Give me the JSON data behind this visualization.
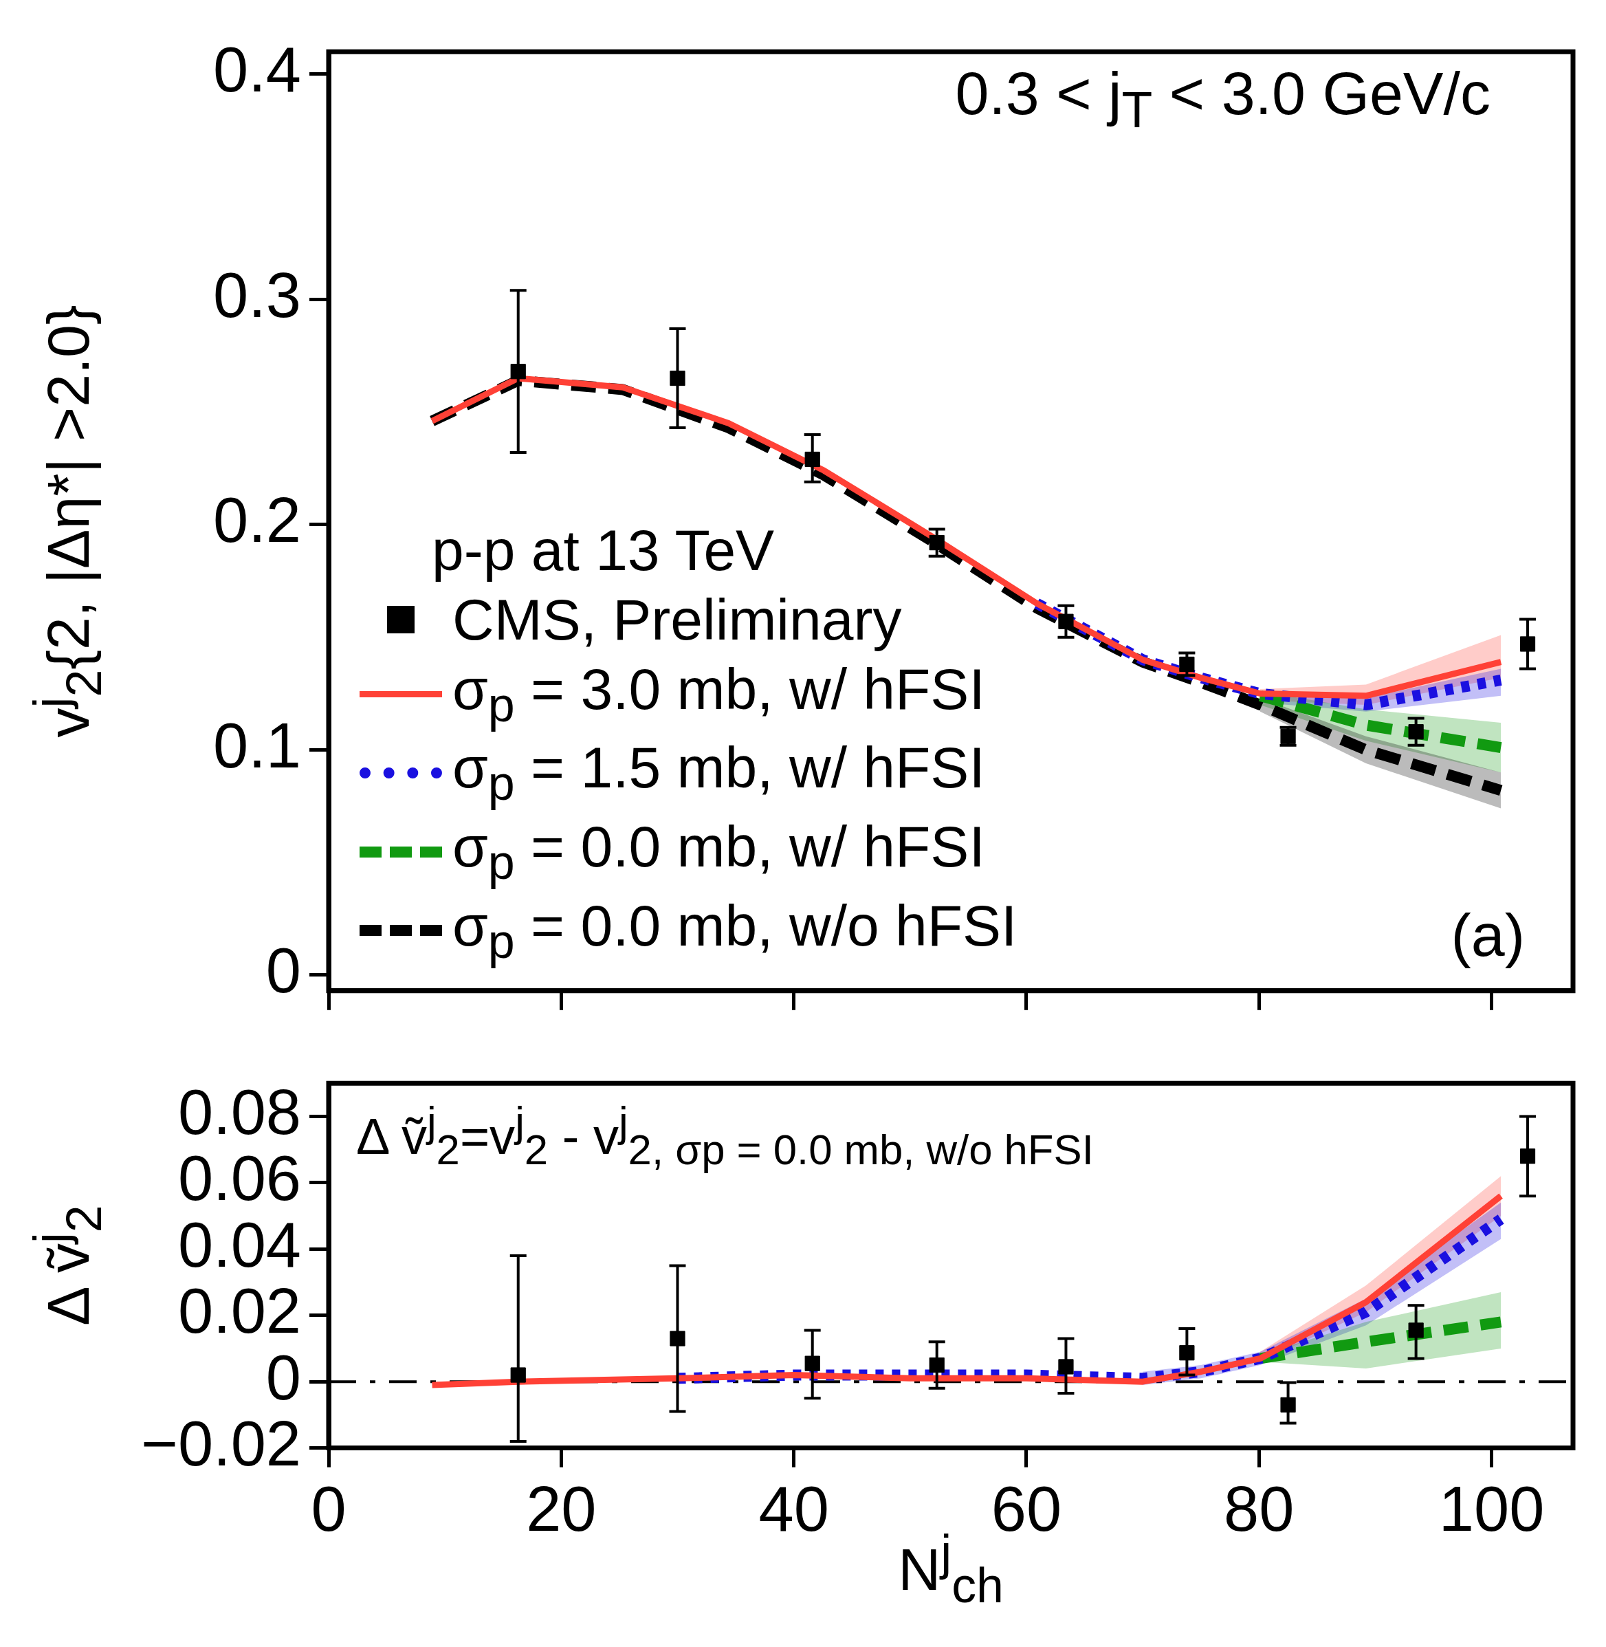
{
  "chart_data": [
    {
      "type": "line",
      "ylabel": "v$^{j}$$_{2}${2, |Δη*| >2.0}",
      "legend_title": "p-p at 13 TeV",
      "legend": "bottom left",
      "tick_labels": "y",
      "grid": false,
      "annotations": [
        "0.3 < j$_{T}$ < 3.0 GeV/c",
        "(a)"
      ],
      "xlim": [
        0,
        107
      ],
      "xticks": [
        0,
        20,
        40,
        60,
        80,
        100
      ],
      "ylim": [
        -0.007,
        0.41
      ],
      "yticks": [
        0,
        0.1,
        0.2,
        0.3,
        0.4
      ],
      "series": [
        {
          "name": "CMS, Preliminary",
          "type": "scatter",
          "marker": "square",
          "color": "#000000",
          "x": [
            16.3,
            30,
            41.6,
            52.3,
            63.4,
            73.8,
            82.5,
            93.5,
            103.1
          ],
          "values": [
            0.268,
            0.265,
            0.229,
            0.192,
            0.157,
            0.138,
            0.106,
            0.108,
            0.147
          ],
          "errors": [
            [
              0.232,
              0.304
            ],
            [
              0.243,
              0.287
            ],
            [
              0.219,
              0.24
            ],
            [
              0.186,
              0.198
            ],
            [
              0.15,
              0.164
            ],
            [
              0.133,
              0.143
            ],
            [
              0.102,
              0.11
            ],
            [
              0.102,
              0.114
            ],
            [
              0.136,
              0.158
            ]
          ]
        },
        {
          "name": "σ$_{p}$ = 3.0 mb, w/ hFSI",
          "color": "#ff4136",
          "line_style": "solid",
          "x": [
            8.9,
            16.3,
            25.3,
            34.4,
            42.6,
            51.8,
            60.9,
            70,
            75,
            80.1,
            89.2,
            100.8
          ],
          "values": [
            0.246,
            0.265,
            0.261,
            0.245,
            0.224,
            0.195,
            0.165,
            0.14,
            0.132,
            0.125,
            0.124,
            0.139
          ],
          "lower": [
            null,
            null,
            null,
            null,
            null,
            null,
            null,
            null,
            null,
            0.122,
            0.12,
            0.132
          ],
          "upper": [
            null,
            null,
            null,
            null,
            null,
            null,
            null,
            null,
            null,
            0.127,
            0.129,
            0.151
          ]
        },
        {
          "name": "σ$_{p}$ = 1.5 mb, w/ hFSI",
          "color": "#1a10e0",
          "line_style": "dotted",
          "x": [
            60.9,
            70,
            75,
            80.1,
            89.2,
            100.8
          ],
          "values": [
            0.165,
            0.14,
            0.132,
            0.125,
            0.12,
            0.131
          ],
          "lower": [
            null,
            null,
            null,
            0.121,
            0.117,
            0.124
          ],
          "upper": [
            null,
            null,
            null,
            0.126,
            0.123,
            0.136
          ]
        },
        {
          "name": "σ$_{p}$ = 0.0 mb, w/ hFSI",
          "color": "#119a11",
          "line_style": "dashed",
          "x": [
            80.1,
            89.2,
            100.8
          ],
          "values": [
            0.124,
            0.111,
            0.101
          ],
          "lower": [
            0.12,
            0.104,
            0.09
          ],
          "upper": [
            0.126,
            0.118,
            0.112
          ]
        },
        {
          "name": "σ$_{p}$ = 0.0 mb, w/o hFSI",
          "color": "#000000",
          "line_style": "dashed",
          "x": [
            8.9,
            16.3,
            25.3,
            34.4,
            42.6,
            51.8,
            60.9,
            70,
            75,
            80.1,
            89.2,
            100.8
          ],
          "values": [
            0.246,
            0.264,
            0.26,
            0.243,
            0.222,
            0.193,
            0.163,
            0.139,
            0.13,
            0.12,
            0.1,
            0.082
          ],
          "lower": [
            null,
            null,
            null,
            null,
            null,
            null,
            null,
            null,
            null,
            0.117,
            0.094,
            0.074
          ],
          "upper": [
            null,
            null,
            null,
            null,
            null,
            null,
            null,
            null,
            null,
            0.123,
            0.106,
            0.09
          ]
        }
      ]
    },
    {
      "type": "line",
      "xlabel": "N$^{j}$$_{ch}$",
      "ylabel": "Δ ṽ$^{j}$$_{2}$",
      "grid": false,
      "annotations": [
        "Δ ṽ$^{j}$$_{2}$=v$^{j}$$_{2}$ - v$^{j}$$_{2, σp = 0.0 mb, w/o hFSI}$"
      ],
      "xlim": [
        0,
        107
      ],
      "xticks": [
        0,
        20,
        40,
        60,
        80,
        100
      ],
      "ylim": [
        -0.02,
        0.09
      ],
      "yticks": [
        {
          "value": -0.02,
          "label": "−0.02"
        },
        0,
        0.02,
        0.04,
        0.06,
        0.08
      ],
      "ref_lines": [
        {
          "axis": "y",
          "value": 0,
          "color": "#000000",
          "line_style": "dashed"
        }
      ],
      "series": [
        {
          "type": "scatter",
          "marker": "square",
          "color": "#000000",
          "x": [
            16.3,
            30,
            41.6,
            52.3,
            63.4,
            73.8,
            82.5,
            93.5,
            103.1
          ],
          "values": [
            0.002,
            0.013,
            0.0055,
            0.005,
            0.0045,
            0.0087,
            -0.007,
            0.0155,
            0.068
          ],
          "errors": [
            [
              -0.018,
              0.038
            ],
            [
              -0.009,
              0.035
            ],
            [
              -0.005,
              0.0155
            ],
            [
              -0.002,
              0.012
            ],
            [
              -0.0035,
              0.013
            ],
            [
              0.002,
              0.016
            ],
            [
              -0.0125,
              -0.0003
            ],
            [
              0.007,
              0.023
            ],
            [
              0.056,
              0.08
            ]
          ]
        },
        {
          "color": "#ff4136",
          "line_style": "solid",
          "x": [
            8.9,
            16.3,
            30,
            40,
            50,
            60,
            70,
            75,
            80.1,
            89.2,
            100.8
          ],
          "values": [
            -0.001,
            0,
            0.001,
            0.002,
            0.001,
            0.001,
            0,
            0.003,
            0.007,
            0.024,
            0.056
          ],
          "lower": [
            null,
            null,
            null,
            null,
            null,
            null,
            null,
            null,
            0.006,
            0.021,
            0.05
          ],
          "upper": [
            null,
            null,
            null,
            null,
            null,
            null,
            null,
            null,
            0.009,
            0.029,
            0.062
          ]
        },
        {
          "color": "#1a10e0",
          "line_style": "dotted",
          "x": [
            30,
            40,
            50,
            60,
            70,
            75,
            80.1,
            89.2,
            100.8
          ],
          "values": [
            0.001,
            0.002,
            0.002,
            0.002,
            0.001,
            0.003,
            0.007,
            0.021,
            0.049
          ],
          "lower": [
            null,
            null,
            null,
            null,
            -0.001,
            0.001,
            0.005,
            0.017,
            0.043
          ],
          "upper": [
            null,
            null,
            null,
            null,
            0.003,
            0.005,
            0.009,
            0.025,
            0.054
          ]
        },
        {
          "color": "#119a11",
          "line_style": "dashed",
          "x": [
            80.1,
            89.2,
            100.8
          ],
          "values": [
            0.007,
            0.012,
            0.018
          ],
          "lower": [
            0.006,
            0.004,
            0.01
          ],
          "upper": [
            0.008,
            0.018,
            0.027
          ]
        }
      ]
    }
  ]
}
